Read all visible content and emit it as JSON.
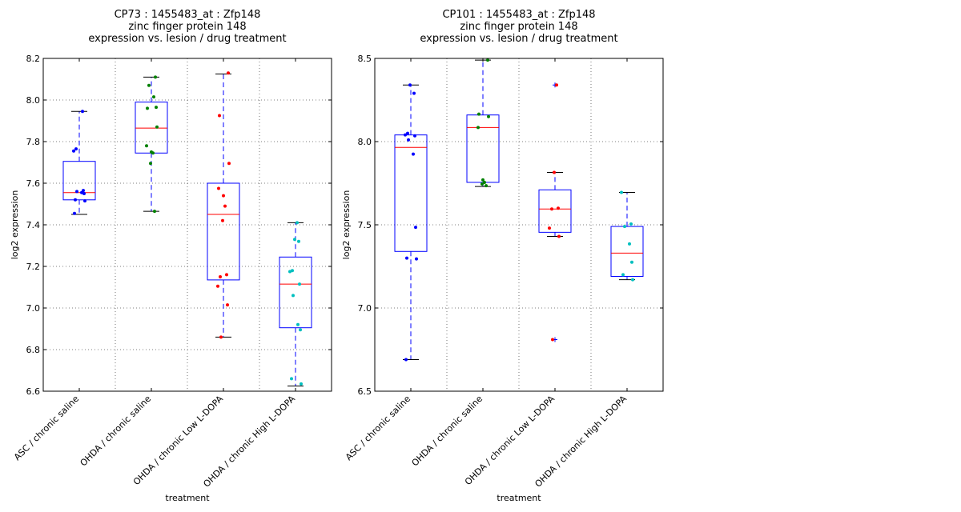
{
  "chart_data": [
    {
      "type": "box",
      "title": [
        "CP73 : 1455483_at : Zfp148",
        "zinc finger protein 148",
        "expression vs. lesion / drug treatment"
      ],
      "xlabel": "treatment",
      "ylabel": "log2 expression",
      "ylim": [
        6.6,
        8.2
      ],
      "yticks": [
        6.6,
        6.8,
        7.0,
        7.2,
        7.4,
        7.6,
        7.8,
        8.0,
        8.2
      ],
      "ytick_labels": [
        "6.6",
        "6.8",
        "7.0",
        "7.2",
        "7.4",
        "7.6",
        "7.8",
        "8.0",
        "8.2"
      ],
      "grid": true,
      "categories": [
        "ASC / chronic saline",
        "OHDA / chronic saline",
        "OHDA / chronic Low L-DOPA",
        "OHDA / chronic High L-DOPA"
      ],
      "point_colors": [
        "#0000ff",
        "#008000",
        "#ff0000",
        "#00bfbf"
      ],
      "boxes": [
        {
          "whislo": 7.45,
          "q1": 7.52,
          "med": 7.555,
          "q3": 7.705,
          "whishi": 7.945,
          "fliers": [],
          "points": [
            7.455,
            7.515,
            7.52,
            7.55,
            7.555,
            7.56,
            7.565,
            7.755,
            7.765,
            7.945
          ]
        },
        {
          "whislo": 7.465,
          "q1": 7.745,
          "med": 7.865,
          "q3": 7.99,
          "whishi": 8.11,
          "fliers": [],
          "points": [
            7.465,
            7.695,
            7.745,
            7.75,
            7.78,
            7.87,
            7.96,
            7.965,
            8.015,
            8.07,
            8.11
          ]
        },
        {
          "whislo": 6.86,
          "q1": 7.135,
          "med": 7.45,
          "q3": 7.6,
          "whishi": 8.125,
          "fliers": [],
          "points": [
            6.86,
            7.015,
            7.105,
            7.15,
            7.16,
            7.42,
            7.49,
            7.54,
            7.575,
            7.695,
            7.925,
            8.13
          ]
        },
        {
          "whislo": 6.625,
          "q1": 6.905,
          "med": 7.115,
          "q3": 7.245,
          "whishi": 7.41,
          "fliers": [],
          "points": [
            6.635,
            6.66,
            6.895,
            6.92,
            7.06,
            7.115,
            7.175,
            7.18,
            7.32,
            7.33,
            7.41
          ]
        }
      ]
    },
    {
      "type": "box",
      "title": [
        "CP101 : 1455483_at : Zfp148",
        "zinc finger protein 148",
        "expression vs. lesion / drug treatment"
      ],
      "xlabel": "treatment",
      "ylabel": "log2 expression",
      "ylim": [
        6.5,
        8.5
      ],
      "yticks": [
        6.5,
        7.0,
        7.5,
        8.0,
        8.5
      ],
      "ytick_labels": [
        "6.5",
        "7.0",
        "7.5",
        "8.0",
        "8.5"
      ],
      "grid": true,
      "categories": [
        "ASC / chronic saline",
        "OHDA / chronic saline",
        "OHDA / chronic Low L-DOPA",
        "OHDA / chronic High L-DOPA"
      ],
      "point_colors": [
        "#0000ff",
        "#008000",
        "#ff0000",
        "#00bfbf"
      ],
      "boxes": [
        {
          "whislo": 6.69,
          "q1": 7.34,
          "med": 7.965,
          "q3": 8.04,
          "whishi": 8.34,
          "fliers": [],
          "points": [
            6.69,
            7.295,
            7.3,
            7.485,
            7.925,
            8.01,
            8.035,
            8.04,
            8.05,
            8.29,
            8.34
          ]
        },
        {
          "whislo": 7.73,
          "q1": 7.755,
          "med": 8.085,
          "q3": 8.16,
          "whishi": 8.49,
          "fliers": [],
          "points": [
            7.735,
            7.745,
            7.755,
            7.77,
            8.085,
            8.15,
            8.165,
            8.49
          ]
        },
        {
          "whislo": 7.43,
          "q1": 7.455,
          "med": 7.595,
          "q3": 7.71,
          "whishi": 7.815,
          "fliers": [
            6.81,
            8.34
          ],
          "points": [
            6.81,
            7.43,
            7.48,
            7.595,
            7.6,
            7.815,
            8.34
          ]
        },
        {
          "whislo": 7.17,
          "q1": 7.19,
          "med": 7.33,
          "q3": 7.49,
          "whishi": 7.695,
          "fliers": [],
          "points": [
            7.17,
            7.2,
            7.275,
            7.385,
            7.49,
            7.505,
            7.695
          ]
        }
      ]
    }
  ]
}
